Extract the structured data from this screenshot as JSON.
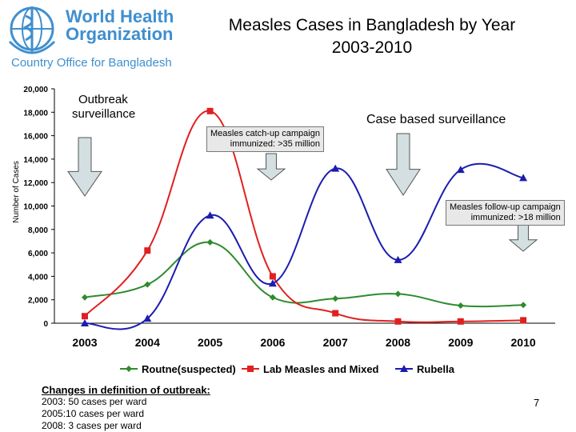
{
  "header": {
    "org_line1": "World Health",
    "org_line2": "Organization",
    "org_sub": "Country Office for Bangladesh",
    "title_line1": "Measles Cases in Bangladesh by Year",
    "title_line2": "2003-2010"
  },
  "labels": {
    "outbreak_1": "Outbreak",
    "outbreak_2": "surveillance",
    "case_based": "Case based surveillance",
    "catchup_1": "Measles catch-up campaign",
    "catchup_2": "immunized: >35 million",
    "followup_1": "Measles follow-up campaign",
    "followup_2": "immunized: >18 million"
  },
  "footnote": {
    "heading": "Changes in definition of outbreak:",
    "lines": [
      "2003: 50 cases per ward",
      "2005:10 cases per ward",
      "2008: 3 cases per ward"
    ]
  },
  "page_number": "7",
  "chart_data": {
    "type": "line",
    "categories": [
      "2003",
      "2004",
      "2005",
      "2006",
      "2007",
      "2008",
      "2009",
      "2010"
    ],
    "ylabel": "Number of Cases",
    "ylim": [
      0,
      20000
    ],
    "yticks": [
      "0",
      "2,000",
      "4,000",
      "6,000",
      "8,000",
      "10,000",
      "12,000",
      "14,000",
      "16,000",
      "18,000",
      "20,000"
    ],
    "legend_position": "bottom",
    "series": [
      {
        "name": "Routne(suspected)",
        "color": "#2e8b2e",
        "marker": "diamond",
        "values": [
          2200,
          3300,
          6900,
          2200,
          2100,
          2500,
          1500,
          1550
        ]
      },
      {
        "name": "Lab Measles and Mixed",
        "color": "#e02020",
        "marker": "square",
        "values": [
          600,
          6200,
          18100,
          4000,
          850,
          150,
          150,
          250
        ]
      },
      {
        "name": "Rubella",
        "color": "#1c1cb0",
        "marker": "triangle",
        "values": [
          0,
          400,
          9200,
          3400,
          13200,
          5400,
          13100,
          12400
        ]
      }
    ]
  }
}
